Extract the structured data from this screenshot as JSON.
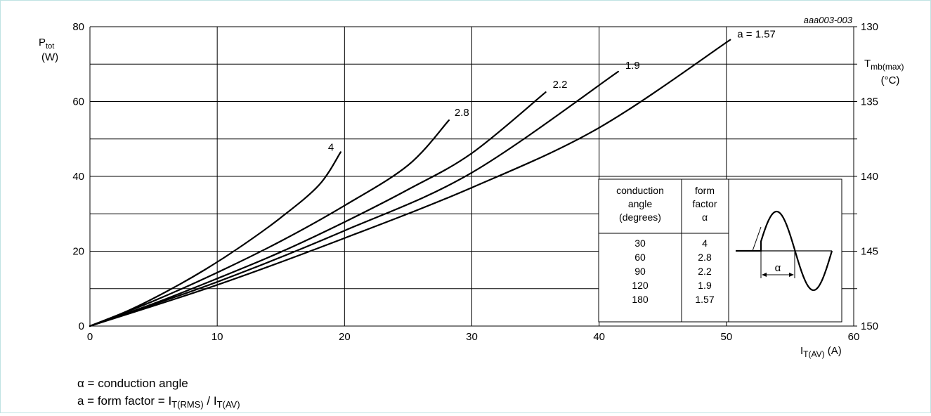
{
  "figure_id": "aaa003-003",
  "chart_data": {
    "type": "line",
    "xlabel": {
      "main": "I",
      "sub": "T(AV)",
      "unit": " (A)"
    },
    "ylabel": {
      "main": "P",
      "sub": "tot",
      "unit": "(W)"
    },
    "y2label": {
      "main": "T",
      "sub": "mb(max)",
      "unit": "(°C)"
    },
    "xlim": [
      0,
      60
    ],
    "ylim": [
      0,
      80
    ],
    "xticks": [
      "0",
      "10",
      "20",
      "30",
      "40",
      "50",
      "60"
    ],
    "yticks": [
      "0",
      "20",
      "40",
      "60",
      "80"
    ],
    "y2ticks": [
      "150",
      "145",
      "140",
      "135",
      "130"
    ],
    "grid": true,
    "series": [
      {
        "name": "4",
        "x": [
          0,
          3,
          6,
          9,
          12,
          15,
          18,
          19.7
        ],
        "y": [
          0,
          4.1,
          9.2,
          15.0,
          21.6,
          29.0,
          37.7,
          46.5
        ]
      },
      {
        "name": "2.8",
        "x": [
          0,
          5,
          10,
          15,
          20,
          25,
          28.2
        ],
        "y": [
          0,
          6.7,
          14.3,
          22.7,
          32.2,
          43.0,
          55.0
        ]
      },
      {
        "name": "2.2",
        "x": [
          0,
          5,
          10,
          15,
          20,
          25,
          30,
          35.8
        ],
        "y": [
          0,
          6.0,
          12.7,
          19.8,
          27.8,
          36.5,
          46.2,
          62.5
        ]
      },
      {
        "name": "1.9",
        "x": [
          0,
          10,
          20,
          30,
          41.5
        ],
        "y": [
          0,
          11.8,
          25.5,
          41.0,
          68.0
        ]
      },
      {
        "name": "a = 1.57",
        "x": [
          0,
          10,
          20,
          30,
          40,
          50.3
        ],
        "y": [
          0,
          11.0,
          23.5,
          37.0,
          53.0,
          76.5
        ]
      }
    ],
    "inset_table": {
      "headers": [
        [
          "conduction",
          "angle",
          "(degrees)"
        ],
        [
          "form",
          "factor",
          "α"
        ]
      ],
      "rows": [
        [
          "30",
          "4"
        ],
        [
          "60",
          "2.8"
        ],
        [
          "90",
          "2.2"
        ],
        [
          "120",
          "1.9"
        ],
        [
          "180",
          "1.57"
        ]
      ],
      "waveform_label": "α"
    }
  },
  "notes": {
    "line1": "α = conduction angle",
    "line2_prefix": "a = form factor = I",
    "line2_sub1": "T(RMS)",
    "line2_mid": " / I",
    "line2_sub2": "T(AV)"
  }
}
